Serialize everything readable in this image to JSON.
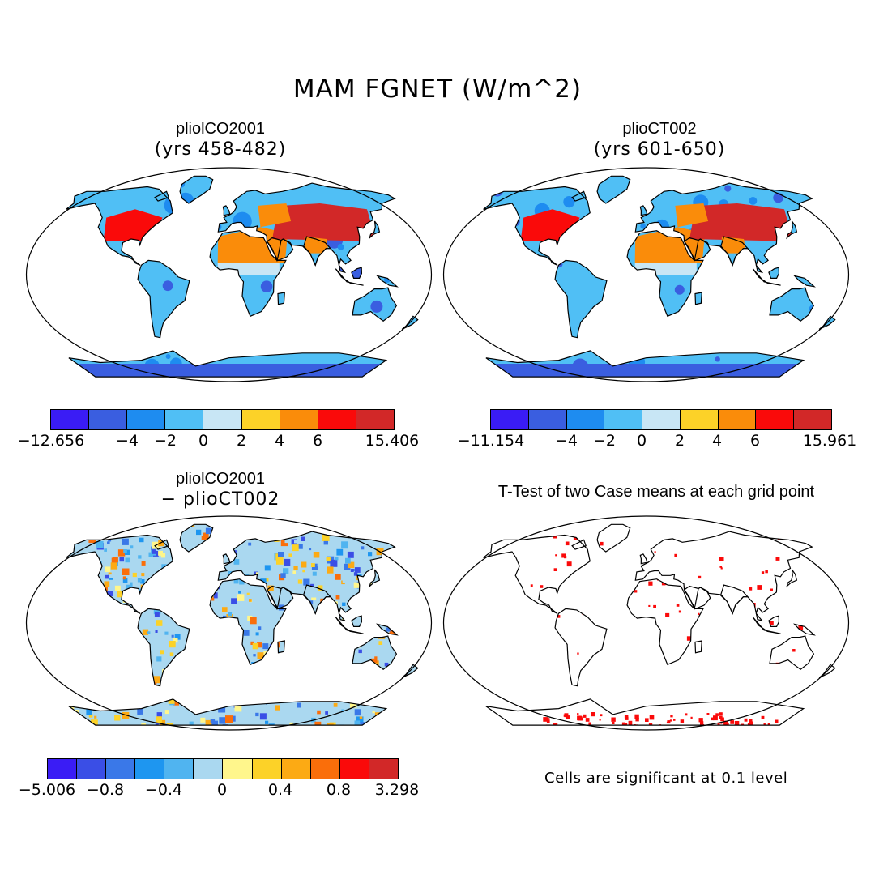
{
  "title": "MAM FGNET (W/m^2)",
  "panels": {
    "tl": {
      "title": "pliolCO2001",
      "subtitle": "(yrs 458-482)",
      "colorbar": {
        "colors": [
          "#3a1cf5",
          "#3a5ee0",
          "#1e8cf0",
          "#50bff5",
          "#c8e6f5",
          "#fcd228",
          "#fa8c0a",
          "#fa0a0a",
          "#d22828"
        ],
        "ticks": [
          "−12.656",
          "−4",
          "−2",
          "0",
          "2",
          "4",
          "6",
          "15.406"
        ]
      }
    },
    "tr": {
      "title": "plioCT002",
      "subtitle": "(yrs 601-650)",
      "colorbar": {
        "colors": [
          "#3a1cf5",
          "#3a5ee0",
          "#1e8cf0",
          "#50bff5",
          "#c8e6f5",
          "#fcd228",
          "#fa8c0a",
          "#fa0a0a",
          "#d22828"
        ],
        "ticks": [
          "−11.154",
          "−4",
          "−2",
          "0",
          "2",
          "4",
          "6",
          "15.961"
        ]
      }
    },
    "bl": {
      "title": "pliolCO2001",
      "subtitle": "− plioCT002",
      "colorbar": {
        "colors": [
          "#3a1cf5",
          "#3a4ee6",
          "#3a78e8",
          "#1e96f0",
          "#50b4f0",
          "#aad8f0",
          "#fff68c",
          "#fcd228",
          "#fcaa14",
          "#fa6e0a",
          "#fa0a0a",
          "#d22828"
        ],
        "ticks": [
          "−5.006",
          "−0.8",
          "−0.4",
          "0",
          "0.4",
          "0.8",
          "3.298"
        ]
      }
    },
    "br": {
      "title": "T-Test of two Case means at each grid point",
      "footnote": "Cells are significant at 0.1 level"
    }
  },
  "colors": {
    "land_tl": "#50bff5",
    "ocean": "#ffffff",
    "coast": "#000000",
    "signif": "#fa0a0a"
  }
}
